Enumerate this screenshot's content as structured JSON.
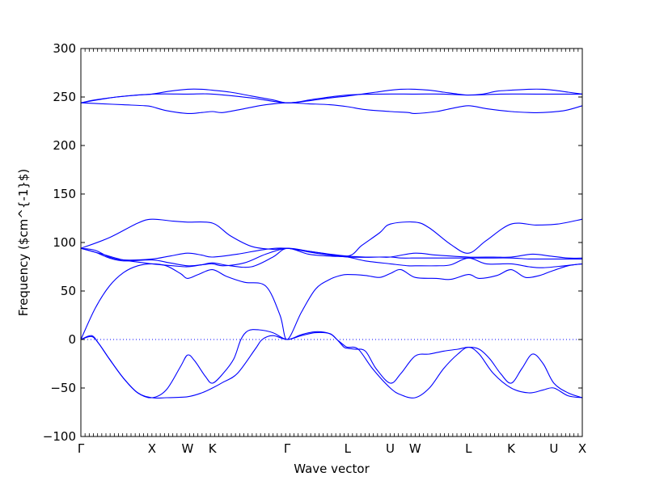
{
  "chart_data": {
    "type": "line",
    "xlabel": "Wave vector",
    "ylabel": "Frequency ($cm^{-1}$)",
    "ylim": [
      -100,
      300
    ],
    "yticks": [
      -100,
      -50,
      0,
      50,
      100,
      150,
      200,
      250,
      300
    ],
    "ytick_labels": [
      "−100",
      "−50",
      "0",
      "50",
      "100",
      "150",
      "200",
      "250",
      "300"
    ],
    "xticks": [
      {
        "label": "Γ",
        "x": 0
      },
      {
        "label": "X",
        "x": 1
      },
      {
        "label": "W",
        "x": 1.5
      },
      {
        "label": "K",
        "x": 1.85
      },
      {
        "label": "Γ",
        "x": 2.9
      },
      {
        "label": "L",
        "x": 3.75
      },
      {
        "label": "U",
        "x": 4.35
      },
      {
        "label": "W",
        "x": 4.7
      },
      {
        "label": "L",
        "x": 5.45
      },
      {
        "label": "K",
        "x": 6.05
      },
      {
        "label": "U",
        "x": 6.65
      },
      {
        "label": "X",
        "x": 7.05
      }
    ],
    "xlim": [
      0,
      7.05
    ],
    "zero_line": true,
    "line_color": "#0000ff",
    "series": [
      {
        "x": [
          0,
          0.2,
          0.5,
          0.8,
          1.0,
          1.25,
          1.5,
          1.7,
          1.85,
          2.1,
          2.4,
          2.7,
          2.9,
          3.2,
          3.5,
          3.75,
          3.95,
          4.15,
          4.35,
          4.5,
          4.7,
          4.9,
          5.1,
          5.3,
          5.45,
          5.65,
          5.85,
          6.05,
          6.3,
          6.5,
          6.65,
          6.85,
          7.05
        ],
        "values": [
          244,
          247,
          250,
          252,
          253,
          256,
          258,
          258,
          257,
          255,
          251,
          247,
          244,
          246,
          249,
          251,
          253,
          255,
          257,
          258,
          258,
          257,
          255,
          253,
          252,
          253,
          256,
          257,
          258,
          258,
          257,
          255,
          253
        ]
      },
      {
        "x": [
          0,
          0.5,
          1.0,
          1.5,
          1.85,
          2.4,
          2.9,
          3.3,
          3.75,
          4.2,
          4.7,
          5.1,
          5.45,
          5.9,
          6.4,
          7.05
        ],
        "values": [
          244,
          250,
          253,
          253,
          253,
          249,
          244,
          248,
          252,
          253,
          253,
          253,
          252,
          253,
          253,
          253
        ]
      },
      {
        "x": [
          0,
          0.3,
          0.6,
          0.9,
          1.0,
          1.2,
          1.5,
          1.7,
          1.85,
          2.0,
          2.3,
          2.6,
          2.9,
          3.2,
          3.5,
          3.75,
          4.0,
          4.35,
          4.6,
          4.7,
          5.0,
          5.2,
          5.45,
          5.7,
          6.05,
          6.3,
          6.5,
          6.8,
          7.05
        ],
        "values": [
          244,
          243,
          242,
          241,
          240,
          236,
          233,
          234,
          235,
          234,
          238,
          242,
          244,
          243,
          242,
          240,
          237,
          235,
          234,
          233,
          235,
          238,
          241,
          238,
          235,
          234,
          234,
          236,
          241
        ]
      },
      {
        "x": [
          0,
          0.4,
          0.8,
          1.0,
          1.3,
          1.5,
          1.85,
          2.1,
          2.4,
          2.7,
          2.9,
          3.3,
          3.75,
          3.95,
          4.2,
          4.35,
          4.7,
          4.9,
          5.2,
          5.45,
          5.7,
          6.05,
          6.4,
          6.7,
          7.05
        ],
        "values": [
          94,
          105,
          120,
          124,
          122,
          121,
          120,
          107,
          96,
          93,
          94,
          90,
          86,
          97,
          110,
          119,
          121,
          115,
          98,
          89,
          102,
          119,
          118,
          119,
          124
        ]
      },
      {
        "x": [
          0,
          0.2,
          0.4,
          0.6,
          1.0,
          1.25,
          1.5,
          1.7,
          1.85,
          2.2,
          2.6,
          2.9,
          3.3,
          3.75,
          4.2,
          4.35,
          4.7,
          5.0,
          5.45,
          5.8,
          6.05,
          6.35,
          6.6,
          6.85,
          7.05
        ],
        "values": [
          94,
          92,
          85,
          82,
          83,
          86,
          89,
          87,
          85,
          88,
          93,
          94,
          89,
          85,
          85,
          85,
          89,
          87,
          85,
          85,
          85,
          88,
          86,
          84,
          84
        ]
      },
      {
        "x": [
          0,
          0.2,
          0.4,
          0.6,
          1.0,
          1.25,
          1.5,
          1.7,
          1.85,
          2.0,
          2.3,
          2.6,
          2.9,
          3.2,
          3.5,
          3.75,
          4.0,
          4.35,
          4.5,
          4.7,
          5.0,
          5.2,
          5.45,
          5.7,
          6.05,
          6.3,
          6.5,
          6.8,
          7.05
        ],
        "values": [
          94,
          90,
          84,
          81,
          82,
          79,
          76,
          77,
          78,
          76,
          79,
          88,
          94,
          91,
          88,
          86,
          85,
          85,
          84,
          84,
          84,
          84,
          84,
          84,
          84,
          83,
          83,
          83,
          83
        ]
      },
      {
        "x": [
          0,
          0.3,
          0.6,
          1.0,
          1.3,
          1.5,
          1.7,
          1.85,
          2.1,
          2.4,
          2.7,
          2.9,
          3.2,
          3.5,
          3.75,
          4.0,
          4.35,
          4.6,
          4.7,
          5.0,
          5.2,
          5.45,
          5.7,
          6.05,
          6.3,
          6.5,
          6.8,
          7.05
        ],
        "values": [
          94,
          88,
          82,
          78,
          76,
          75,
          77,
          79,
          76,
          75,
          85,
          94,
          88,
          86,
          85,
          81,
          78,
          76,
          76,
          76,
          77,
          84,
          78,
          78,
          75,
          74,
          76,
          78
        ]
      },
      {
        "x": [
          0,
          0.2,
          0.4,
          0.6,
          0.8,
          1.0,
          1.2,
          1.4,
          1.5,
          1.65,
          1.85,
          2.05,
          2.3,
          2.6,
          2.8,
          2.9,
          3.1,
          3.3,
          3.5,
          3.65,
          3.75,
          4.0,
          4.2,
          4.35,
          4.5,
          4.7,
          5.0,
          5.2,
          5.45,
          5.6,
          5.85,
          6.05,
          6.25,
          6.45,
          6.6,
          6.85,
          7.05
        ],
        "values": [
          0,
          32,
          55,
          69,
          76,
          78,
          76,
          68,
          63,
          67,
          72,
          65,
          59,
          55,
          25,
          0,
          28,
          52,
          62,
          66,
          67,
          66,
          64,
          68,
          72,
          64,
          63,
          62,
          67,
          63,
          66,
          72,
          64,
          66,
          70,
          76,
          78
        ]
      },
      {
        "x": [
          0,
          0.15,
          0.25,
          0.4,
          0.6,
          0.8,
          1.0,
          1.2,
          1.4,
          1.5,
          1.6,
          1.75,
          1.85,
          2.0,
          2.15,
          2.25,
          2.35,
          2.5,
          2.7,
          2.9,
          3.1,
          3.3,
          3.5,
          3.6,
          3.7,
          3.75,
          3.85,
          4.0,
          4.15,
          4.35,
          4.5,
          4.7,
          4.9,
          5.1,
          5.3,
          5.45,
          5.6,
          5.75,
          5.9,
          6.05,
          6.2,
          6.35,
          6.5,
          6.65,
          6.85,
          7.05
        ],
        "values": [
          0,
          4,
          -4,
          -20,
          -40,
          -55,
          -60,
          -52,
          -28,
          -16,
          -22,
          -38,
          -45,
          -35,
          -20,
          0,
          9,
          10,
          7,
          0,
          5,
          8,
          6,
          0,
          -8,
          -9,
          -10,
          -12,
          -30,
          -45,
          -35,
          -17,
          -15,
          -12,
          -10,
          -8,
          -10,
          -20,
          -35,
          -45,
          -30,
          -15,
          -25,
          -45,
          -55,
          -60
        ]
      },
      {
        "x": [
          0,
          0.15,
          0.25,
          0.4,
          0.6,
          0.8,
          1.0,
          1.2,
          1.5,
          1.7,
          1.85,
          2.0,
          2.2,
          2.45,
          2.55,
          2.7,
          2.9,
          3.1,
          3.3,
          3.5,
          3.6,
          3.7,
          3.75,
          3.9,
          4.1,
          4.35,
          4.5,
          4.7,
          4.9,
          5.1,
          5.3,
          5.45,
          5.6,
          5.8,
          6.05,
          6.3,
          6.5,
          6.65,
          6.85,
          7.05
        ],
        "values": [
          0,
          3,
          -4,
          -20,
          -40,
          -55,
          -60,
          -60,
          -59,
          -55,
          -50,
          -44,
          -35,
          -10,
          0,
          4,
          0,
          4,
          7,
          6,
          0,
          -6,
          -8,
          -10,
          -30,
          -50,
          -57,
          -60,
          -50,
          -30,
          -15,
          -8,
          -15,
          -35,
          -50,
          -55,
          -52,
          -50,
          -58,
          -60
        ]
      }
    ]
  }
}
